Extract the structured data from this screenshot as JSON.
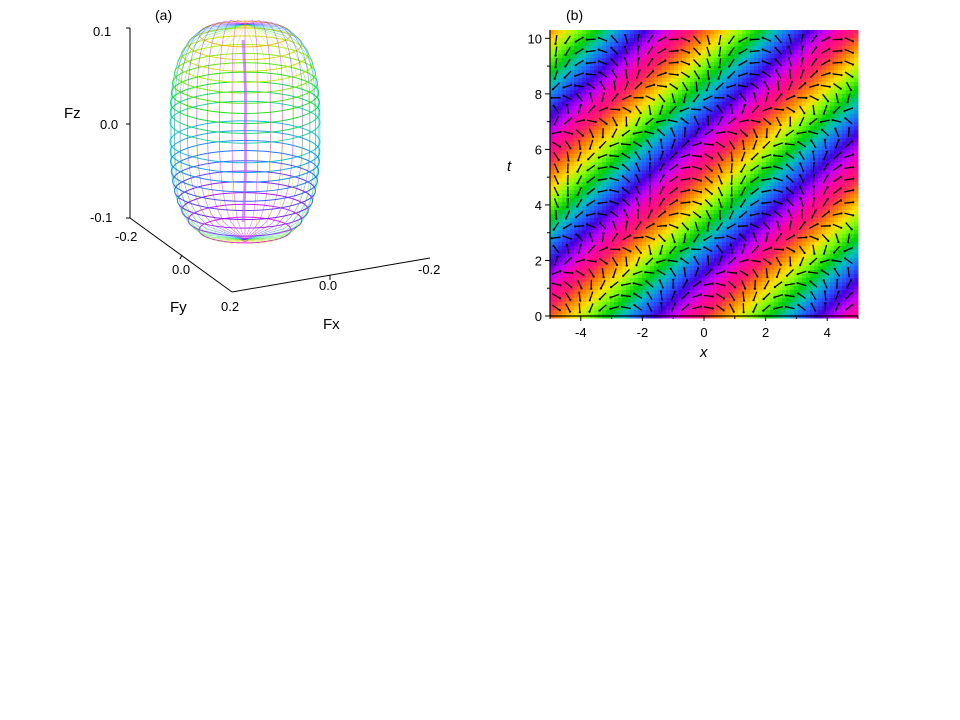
{
  "chart_data": [
    {
      "type": "surface",
      "panel_label": "(a)",
      "axes": {
        "x": {
          "label": "Fx",
          "ticks": [
            "0.0",
            "-0.2"
          ]
        },
        "y": {
          "label": "Fy",
          "ticks": [
            "-0.2",
            "0.0",
            "0.2"
          ]
        },
        "z": {
          "label": "Fz",
          "ticks": [
            "0.1",
            "0.0",
            "-0.1"
          ]
        }
      },
      "xlim": [
        -0.2,
        0.2
      ],
      "ylim": [
        -0.2,
        0.2
      ],
      "zlim": [
        -0.1,
        0.1
      ],
      "colormap": [
        "#ff00ff",
        "#8000ff",
        "#0070ff",
        "#00d0d0",
        "#00e000",
        "#c0f000",
        "#ffa000"
      ]
    },
    {
      "type": "heatmap",
      "panel_label": "(b)",
      "xlabel": "x",
      "ylabel": "t",
      "xlim": [
        -5,
        5
      ],
      "ylim": [
        0,
        10.3
      ],
      "xticks": [
        "-4",
        "-2",
        "0",
        "2",
        "4"
      ],
      "yticks": [
        "0",
        "2",
        "4",
        "6",
        "8",
        "10"
      ],
      "phase_slope": 1.0,
      "stripe_period": 5.3,
      "colormap": [
        "#ff2060",
        "#ff8000",
        "#ffe000",
        "#80ff00",
        "#00d000",
        "#00c0c0",
        "#2060ff",
        "#4000e0",
        "#c000ff",
        "#ff00a0"
      ],
      "overlay": "vector-field"
    }
  ]
}
